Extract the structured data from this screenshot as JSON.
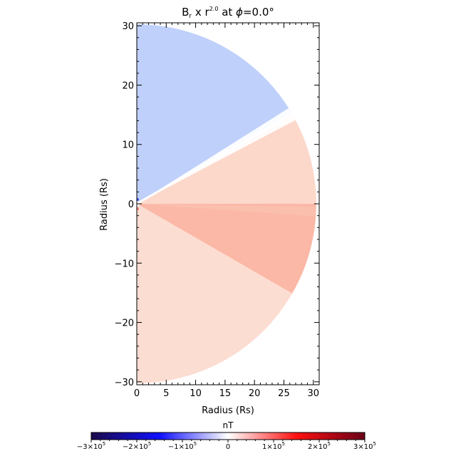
{
  "chart_data": {
    "type": "heatmap",
    "title_main": "B",
    "title_sub": "r",
    "title_mid": " x ",
    "title_sup": "2.0",
    "title_tail_pre": " at ",
    "title_phi": "ϕ",
    "title_tail": "=0.0°",
    "xlabel": "Radius (Rs)",
    "ylabel": "Radius (Rs)",
    "xlim": [
      0,
      31
    ],
    "ylim": [
      -30.5,
      30.5
    ],
    "x_ticks": [
      "0",
      "5",
      "10",
      "15",
      "20",
      "25",
      "30"
    ],
    "y_ticks": [
      "30",
      "20",
      "10",
      "0",
      "−10",
      "−20",
      "−30"
    ],
    "domain_radius": 30.5,
    "current_sheet_angle_deg": 30,
    "colorbar": {
      "label": "nT",
      "range": [
        -300000,
        300000
      ],
      "ticks": [
        {
          "value": -300000,
          "mant": "−3×10",
          "exp": "5"
        },
        {
          "value": -200000,
          "mant": "−2×10",
          "exp": "5"
        },
        {
          "value": -100000,
          "mant": "−1×10",
          "exp": "5"
        },
        {
          "value": 0,
          "mant": "0",
          "exp": ""
        },
        {
          "value": 100000,
          "mant": "1×10",
          "exp": "5"
        },
        {
          "value": 200000,
          "mant": "2×10",
          "exp": "5"
        },
        {
          "value": 300000,
          "mant": "3×10",
          "exp": "5"
        }
      ],
      "colors": [
        "#1a0a4a",
        "#1010ff",
        "#ffffff",
        "#ff1010",
        "#6a0018"
      ]
    },
    "regions": [
      {
        "from_deg": 30,
        "to_deg": 90,
        "value": -60000,
        "color": "#bfd0fb"
      },
      {
        "from_deg": 0,
        "to_deg": 30,
        "value": 40000,
        "color": "#fcd8cb"
      },
      {
        "from_deg": -30,
        "to_deg": 0,
        "value": 90000,
        "color": "#fbb8a6"
      },
      {
        "from_deg": -90,
        "to_deg": -30,
        "value": 30000,
        "color": "#fcddd2"
      }
    ]
  }
}
